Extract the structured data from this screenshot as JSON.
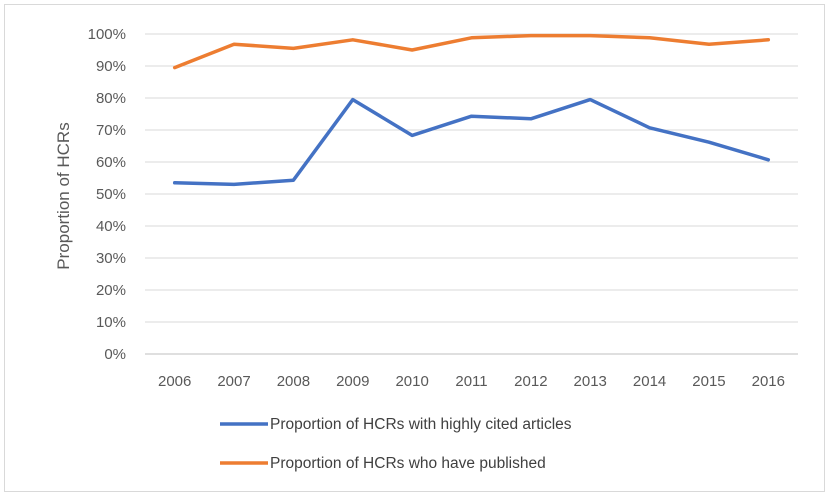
{
  "chart_data": {
    "type": "line",
    "title": "",
    "xlabel": "",
    "ylabel": "Proportion of HCRs",
    "categories": [
      "2006",
      "2007",
      "2008",
      "2009",
      "2010",
      "2011",
      "2012",
      "2013",
      "2014",
      "2015",
      "2016"
    ],
    "y_ticks": [
      "0%",
      "10%",
      "20%",
      "30%",
      "40%",
      "50%",
      "60%",
      "70%",
      "80%",
      "90%",
      "100%"
    ],
    "ylim": [
      0,
      1
    ],
    "grid": true,
    "legend_position": "bottom",
    "series": [
      {
        "name": "Proportion of HCRs with highly cited articles",
        "color": "#4472C4",
        "values": [
          0.535,
          0.53,
          0.543,
          0.795,
          0.683,
          0.743,
          0.735,
          0.795,
          0.707,
          0.662,
          0.607
        ]
      },
      {
        "name": "Proportion of HCRs who have published",
        "color": "#ED7D31",
        "values": [
          0.895,
          0.968,
          0.955,
          0.982,
          0.95,
          0.988,
          0.995,
          0.995,
          0.988,
          0.968,
          0.982
        ]
      }
    ]
  }
}
